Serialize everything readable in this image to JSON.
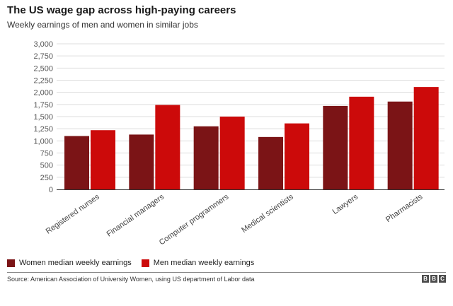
{
  "header": {
    "title": "The US wage gap across high-paying careers",
    "subtitle": "Weekly earnings of men and women in similar jobs"
  },
  "legend": {
    "women_label": "Women median weekly earnings",
    "men_label": "Men median weekly earnings"
  },
  "footer": {
    "source": "Source: American Association of University Women, using US department of Labor data",
    "logo_letters": [
      "B",
      "B",
      "C"
    ]
  },
  "colors": {
    "women": "#7b1416",
    "men": "#cc0a0a",
    "grid": "#dddddd"
  },
  "chart_data": {
    "type": "bar",
    "title": "The US wage gap across high-paying careers",
    "subtitle": "Weekly earnings of men and women in similar jobs",
    "xlabel": "",
    "ylabel": "",
    "ylim": [
      0,
      3000
    ],
    "yticks": [
      0,
      250,
      500,
      750,
      1000,
      1250,
      1500,
      1750,
      2000,
      2250,
      2500,
      2750,
      3000
    ],
    "ytick_labels": [
      "0",
      "250",
      "500",
      "750",
      "1,000",
      "1,250",
      "1,500",
      "1,750",
      "2,000",
      "2,250",
      "2,500",
      "2,750",
      "3,000"
    ],
    "grid": true,
    "legend_position": "bottom-left",
    "categories": [
      "Registered nurses",
      "Financial managers",
      "Computer programmers",
      "Medical scientists",
      "Lawyers",
      "Pharmacists"
    ],
    "series": [
      {
        "name": "Women median weekly earnings",
        "values": [
          1100,
          1130,
          1300,
          1080,
          1720,
          1810
        ]
      },
      {
        "name": "Men median weekly earnings",
        "values": [
          1220,
          1740,
          1500,
          1360,
          1910,
          2110
        ]
      }
    ]
  }
}
